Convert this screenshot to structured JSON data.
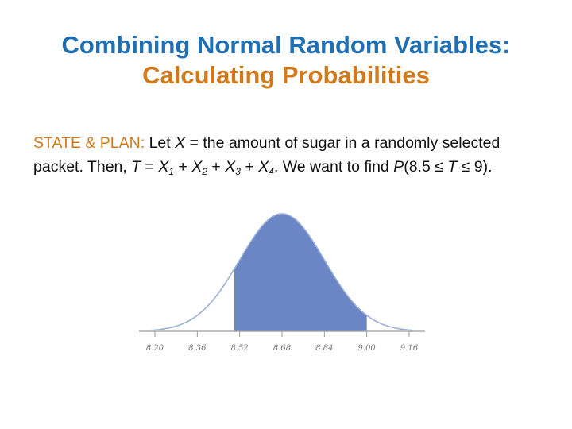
{
  "title": {
    "line1": "Combining Normal Random Variables:",
    "line2": "Calculating Probabilities"
  },
  "body": {
    "label": "STATE & PLAN:",
    "t1": " Let ",
    "x_var": "X",
    "t2": " = the amount of sugar in a randomly selected packet. Then, ",
    "t_var": "T",
    "t3": " = ",
    "x1": "X",
    "s1": "1",
    "plus1": " + ",
    "x2": "X",
    "s2": "2",
    "plus2": " + ",
    "x3": "X",
    "s3": "3",
    "plus3": " + ",
    "x4": "X",
    "s4": "4",
    "t4": ".  We want to find ",
    "p_var": "P",
    "t5": "(8.5 ≤ ",
    "t_var2": "T",
    "t6": " ≤ 9)."
  },
  "chart_data": {
    "type": "area",
    "distribution": "normal",
    "mean": 8.68,
    "sd": 0.16,
    "shaded_interval": [
      8.5,
      9.0
    ],
    "fill_color": "#6a86c4",
    "curve_color": "#9cb0d8",
    "xlim": [
      8.14,
      9.22
    ],
    "tick_labels": [
      "8.20",
      "8.36",
      "8.52",
      "8.68",
      "8.84",
      "9.00",
      "9.16"
    ]
  }
}
